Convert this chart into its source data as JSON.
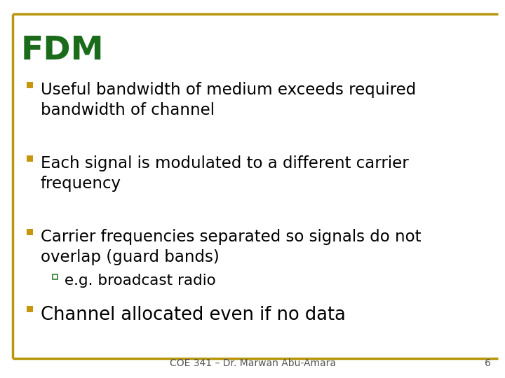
{
  "title": "FDM",
  "title_color": "#1a6b1a",
  "title_fontsize": 34,
  "background_color": "#ffffff",
  "border_color": "#b8960c",
  "bullet_color": "#c8960c",
  "bullet_items": [
    "Useful bandwidth of medium exceeds required\nbandwidth of channel",
    "Each signal is modulated to a different carrier\nfrequency",
    "Carrier frequencies separated so signals do not\noverlap (guard bands)"
  ],
  "sub_bullet": "e.g. broadcast radio",
  "last_bullet": "Channel allocated even if no data",
  "footer_text": "COE 341 – Dr. Marwan Abu-Amara",
  "footer_page": "6",
  "text_color": "#000000",
  "body_fontsize": 16.5,
  "footer_fontsize": 10,
  "sub_bullet_color": "#2e7d32"
}
